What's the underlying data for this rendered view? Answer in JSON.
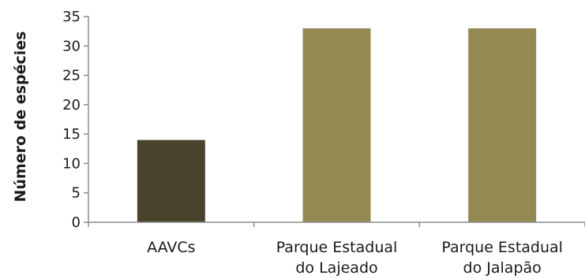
{
  "chart_data": {
    "type": "bar",
    "categories": [
      [
        "AAVCs"
      ],
      [
        "Parque Estadual",
        "do Lajeado"
      ],
      [
        "Parque Estadual",
        "do Jalapão"
      ]
    ],
    "values": [
      14,
      33,
      33
    ],
    "colors": [
      "#4a432b",
      "#938953",
      "#938953"
    ],
    "ylabel": "Número de espécies",
    "xlabel": "",
    "ylim": [
      0,
      35
    ],
    "yticks": [
      0,
      5,
      10,
      15,
      20,
      25,
      30,
      35
    ],
    "grid": false,
    "legend": "none"
  }
}
